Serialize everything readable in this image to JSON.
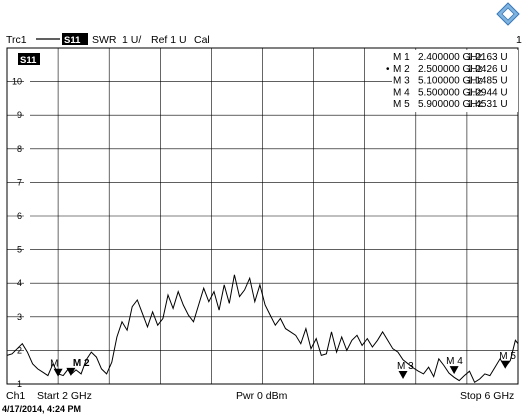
{
  "header": {
    "trace": "Trc1",
    "param": "S11",
    "format": "SWR",
    "scale": "1 U/",
    "ref": "Ref 1 U",
    "cal": "Cal",
    "channel_number": "1"
  },
  "footer": {
    "channel": "Ch1",
    "start": "Start  2 GHz",
    "power": "Pwr  0 dBm",
    "stop": "Stop  6 GHz"
  },
  "timestamp": "4/17/2014, 4:24 PM",
  "marker_table": [
    {
      "id": "M 1",
      "freq": "2.400000 GHz",
      "value": "1.2163  U",
      "active": false
    },
    {
      "id": "M 2",
      "freq": "2.500000 GHz",
      "value": "1.2426  U",
      "active": true
    },
    {
      "id": "M 3",
      "freq": "5.100000 GHz",
      "value": "1.1485  U",
      "active": false
    },
    {
      "id": "M 4",
      "freq": "5.500000 GHz",
      "value": "1.2944  U",
      "active": false
    },
    {
      "id": "M 5",
      "freq": "5.900000 GHz",
      "value": "1.4531  U",
      "active": false
    }
  ],
  "marker_labels": [
    "M",
    "M 2",
    "M 3",
    "M 4",
    "M 5"
  ],
  "logo_icon": "rohde-schwarz-logo-icon",
  "colors": {
    "trace": "#000000",
    "grid": "#000000",
    "background": "#ffffff"
  },
  "chart_data": {
    "type": "line",
    "xlabel": "",
    "ylabel": "",
    "xlim": [
      2,
      6
    ],
    "ylim": [
      1,
      11
    ],
    "y_ticks": [
      2,
      3,
      4,
      5,
      6,
      7,
      8,
      9,
      10
    ],
    "grid": true,
    "series": [
      {
        "name": "S11",
        "x": [
          2.0,
          2.04,
          2.08,
          2.12,
          2.16,
          2.2,
          2.24,
          2.28,
          2.32,
          2.36,
          2.4,
          2.44,
          2.48,
          2.5,
          2.54,
          2.58,
          2.62,
          2.66,
          2.7,
          2.74,
          2.78,
          2.82,
          2.86,
          2.9,
          2.94,
          2.98,
          3.02,
          3.06,
          3.1,
          3.14,
          3.18,
          3.22,
          3.26,
          3.3,
          3.34,
          3.38,
          3.42,
          3.46,
          3.5,
          3.54,
          3.58,
          3.62,
          3.66,
          3.7,
          3.74,
          3.78,
          3.82,
          3.86,
          3.9,
          3.94,
          3.98,
          4.02,
          4.06,
          4.1,
          4.14,
          4.18,
          4.22,
          4.26,
          4.3,
          4.34,
          4.38,
          4.42,
          4.46,
          4.5,
          4.54,
          4.58,
          4.62,
          4.66,
          4.7,
          4.74,
          4.78,
          4.82,
          4.86,
          4.9,
          4.94,
          4.98,
          5.02,
          5.06,
          5.1,
          5.14,
          5.18,
          5.22,
          5.26,
          5.3,
          5.34,
          5.38,
          5.42,
          5.46,
          5.5,
          5.54,
          5.58,
          5.62,
          5.66,
          5.7,
          5.74,
          5.78,
          5.82,
          5.86,
          5.9,
          5.94,
          5.98,
          6.0
        ],
        "values": [
          1.85,
          1.9,
          2.05,
          2.2,
          1.95,
          1.6,
          1.45,
          1.35,
          1.25,
          1.6,
          1.3,
          1.25,
          1.45,
          1.28,
          1.42,
          1.3,
          1.72,
          1.95,
          1.8,
          1.45,
          1.3,
          1.65,
          2.4,
          2.85,
          2.6,
          3.3,
          3.5,
          3.1,
          2.7,
          3.15,
          2.75,
          2.95,
          3.65,
          3.25,
          3.75,
          3.35,
          3.05,
          2.85,
          3.35,
          3.85,
          3.45,
          3.75,
          3.2,
          3.95,
          3.4,
          4.25,
          3.6,
          3.8,
          4.15,
          3.45,
          3.95,
          3.35,
          3.05,
          2.75,
          2.95,
          2.65,
          2.55,
          2.45,
          2.2,
          2.65,
          2.05,
          2.35,
          1.85,
          1.9,
          2.55,
          1.95,
          2.4,
          2.0,
          2.3,
          2.45,
          2.15,
          2.35,
          2.1,
          2.3,
          2.55,
          2.3,
          2.05,
          1.95,
          1.72,
          1.6,
          1.48,
          1.38,
          1.3,
          1.5,
          1.22,
          1.75,
          1.55,
          1.32,
          1.2,
          1.1,
          1.25,
          1.38,
          1.05,
          1.15,
          1.3,
          1.25,
          1.5,
          1.75,
          1.5,
          1.7,
          2.3,
          2.2
        ]
      }
    ],
    "markers": [
      {
        "label": "M 1",
        "x": 2.4,
        "y": 1.2163
      },
      {
        "label": "M 2",
        "x": 2.5,
        "y": 1.2426
      },
      {
        "label": "M 3",
        "x": 5.1,
        "y": 1.1485
      },
      {
        "label": "M 4",
        "x": 5.5,
        "y": 1.2944
      },
      {
        "label": "M 5",
        "x": 5.9,
        "y": 1.4531
      }
    ]
  }
}
